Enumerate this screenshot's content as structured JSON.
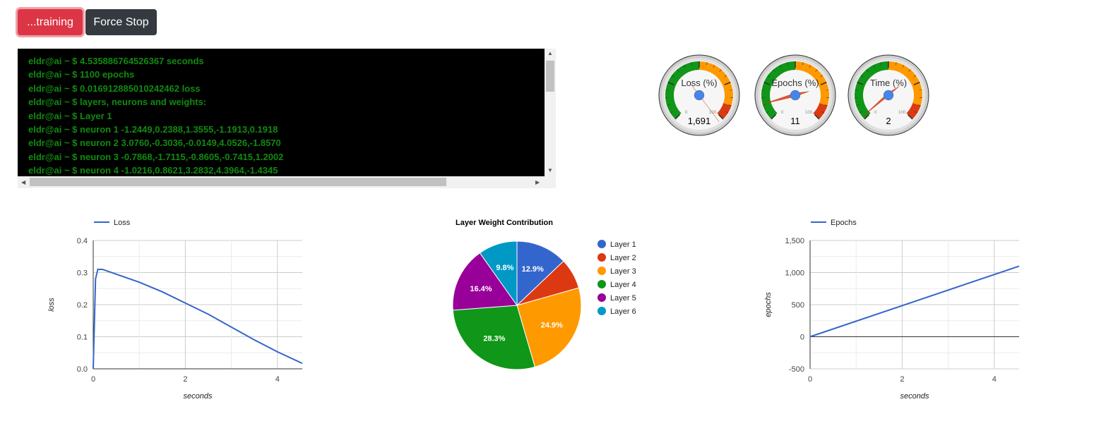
{
  "buttons": {
    "training": "...training",
    "force_stop": "Force Stop"
  },
  "terminal": {
    "lines": [
      "eldr@ai ~ $ 4.535886764526367 seconds",
      "eldr@ai ~ $ 1100 epochs",
      "eldr@ai ~ $ 0.016912885010242462 loss",
      "eldr@ai ~ $ layers, neurons and weights:",
      "eldr@ai ~ $ Layer 1",
      "eldr@ai ~ $ neuron 1 -1.2449,0.2388,1.3555,-1.1913,0.1918",
      "eldr@ai ~ $ neuron 2 3.0760,-0.3036,-0.0149,4.0526,-1.8570",
      "eldr@ai ~ $ neuron 3 -0.7868,-1.7115,-0.8605,-0.7415,1.2002",
      "eldr@ai ~ $ neuron 4 -1.0216,0.8621,3.2832,4.3964,-1.4345"
    ]
  },
  "gauges": [
    {
      "label": "Loss (%)",
      "value_text": "1,691",
      "value": 1691,
      "min_label": "0",
      "max_label": "100"
    },
    {
      "label": "Epochs (%)",
      "value_text": "11",
      "value": 11,
      "min_label": "0",
      "max_label": "100"
    },
    {
      "label": "Time (%)",
      "value_text": "2",
      "value": 2,
      "min_label": "0",
      "max_label": "100"
    }
  ],
  "gauge_colors": {
    "green": "#109618",
    "orange": "#ff9900",
    "red": "#dc3912",
    "needle": "#dc3912",
    "hub": "#4684ee"
  },
  "chart_data": [
    {
      "type": "line",
      "legend": "Loss",
      "legend_position": "top-left",
      "xlabel": "seconds",
      "ylabel": "loss",
      "ylim": [
        0,
        0.4
      ],
      "xlim": [
        0,
        4.54
      ],
      "yticks": [
        "0.0",
        "0.1",
        "0.2",
        "0.3",
        "0.4"
      ],
      "xticks": [
        "0",
        "2",
        "4"
      ],
      "color": "#3366cc",
      "x": [
        0,
        0.05,
        0.1,
        0.2,
        0.5,
        1,
        1.5,
        2,
        2.5,
        3,
        3.5,
        4,
        4.54
      ],
      "y": [
        0,
        0.28,
        0.31,
        0.31,
        0.295,
        0.27,
        0.24,
        0.205,
        0.17,
        0.13,
        0.09,
        0.053,
        0.017
      ]
    },
    {
      "type": "pie",
      "title": "Layer Weight Contribution",
      "legend_position": "right",
      "labels": [
        "Layer 1",
        "Layer 2",
        "Layer 3",
        "Layer 4",
        "Layer 5",
        "Layer 6"
      ],
      "values": [
        12.9,
        7.7,
        24.9,
        28.3,
        16.4,
        9.8
      ],
      "data_labels": [
        "12.9%",
        "",
        "24.9%",
        "28.3%",
        "16.4%",
        "9.8%"
      ],
      "colors": [
        "#3366cc",
        "#dc3912",
        "#ff9900",
        "#109618",
        "#990099",
        "#0099c6"
      ]
    },
    {
      "type": "line",
      "legend": "Epochs",
      "legend_position": "top-left",
      "xlabel": "seconds",
      "ylabel": "epochs",
      "ylim": [
        -500,
        1500
      ],
      "xlim": [
        0,
        4.54
      ],
      "yticks": [
        "-500",
        "0",
        "500",
        "1,000",
        "1,500"
      ],
      "xticks": [
        "0",
        "2",
        "4"
      ],
      "color": "#3366cc",
      "x": [
        0,
        4.54
      ],
      "y": [
        0,
        1100
      ]
    }
  ]
}
